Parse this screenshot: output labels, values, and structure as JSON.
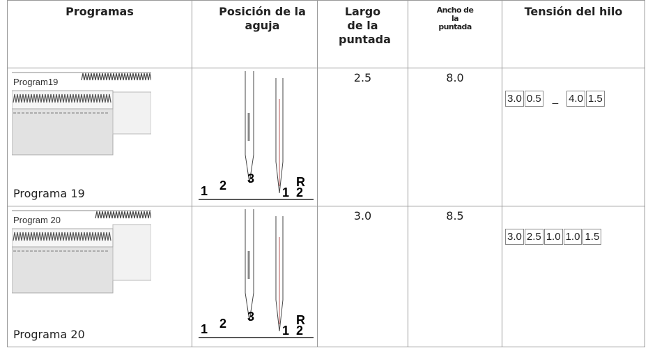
{
  "table": {
    "header": [
      "Programas",
      "Posición de la aguja",
      "Largo de la puntada",
      "Ancho de la puntada",
      "Tensión del hilo"
    ],
    "rows": [
      {
        "image_label": "Program19",
        "caption": "Programa 19",
        "needle_labels": [
          "1",
          "2",
          "3",
          "R",
          "1",
          "2"
        ],
        "largo": "2.5",
        "ancho": "8.0",
        "tension": [
          "3.0",
          "0.5",
          "_",
          "4.0",
          "1.5"
        ]
      },
      {
        "image_label": "Program 20",
        "caption": "Programa 20",
        "needle_labels": [
          "1",
          "2",
          "3",
          "R",
          "1",
          "2"
        ],
        "largo": "3.0",
        "ancho": "8.5",
        "tension": [
          "3.0",
          "2.5",
          "1.0",
          "1.0",
          "1.5"
        ]
      }
    ]
  }
}
